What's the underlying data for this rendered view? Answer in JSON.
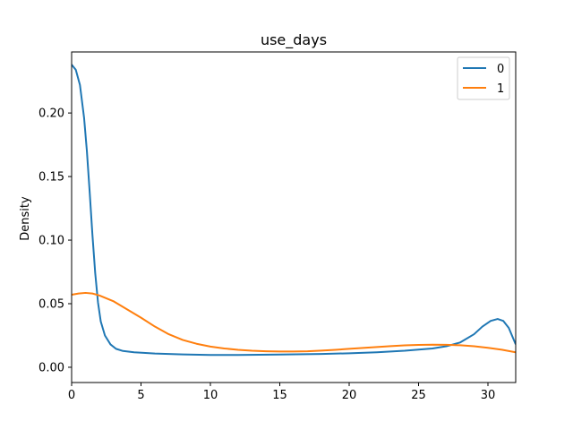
{
  "chart_data": {
    "type": "line",
    "title": "use_days",
    "xlabel": "",
    "ylabel": "Density",
    "xlim": [
      0,
      32
    ],
    "ylim": [
      -0.012,
      0.248
    ],
    "grid": false,
    "legend_position": "top-right",
    "x_ticks": [
      0,
      5,
      10,
      15,
      20,
      25,
      30
    ],
    "x_tick_labels": [
      "0",
      "5",
      "10",
      "15",
      "20",
      "25",
      "30"
    ],
    "y_ticks": [
      0.0,
      0.05,
      0.1,
      0.15,
      0.2
    ],
    "y_tick_labels": [
      "0.00",
      "0.05",
      "0.10",
      "0.15",
      "0.20"
    ],
    "series": [
      {
        "name": "0",
        "color": "#1f77b4",
        "points": [
          [
            0,
            0.238
          ],
          [
            0.3,
            0.234
          ],
          [
            0.6,
            0.222
          ],
          [
            0.9,
            0.196
          ],
          [
            1.1,
            0.17
          ],
          [
            1.3,
            0.138
          ],
          [
            1.5,
            0.104
          ],
          [
            1.7,
            0.074
          ],
          [
            1.9,
            0.051
          ],
          [
            2.1,
            0.036
          ],
          [
            2.4,
            0.025
          ],
          [
            2.8,
            0.018
          ],
          [
            3.2,
            0.0145
          ],
          [
            3.7,
            0.0128
          ],
          [
            4.5,
            0.0118
          ],
          [
            6,
            0.0108
          ],
          [
            8,
            0.0101
          ],
          [
            10,
            0.0097
          ],
          [
            12,
            0.0097
          ],
          [
            15,
            0.01
          ],
          [
            18,
            0.0105
          ],
          [
            20,
            0.011
          ],
          [
            22,
            0.0118
          ],
          [
            24,
            0.013
          ],
          [
            26,
            0.0148
          ],
          [
            27,
            0.0165
          ],
          [
            28,
            0.0195
          ],
          [
            29,
            0.026
          ],
          [
            29.6,
            0.032
          ],
          [
            30.2,
            0.0365
          ],
          [
            30.7,
            0.038
          ],
          [
            31.1,
            0.0365
          ],
          [
            31.5,
            0.031
          ],
          [
            32,
            0.018
          ]
        ]
      },
      {
        "name": "1",
        "color": "#ff7f0e",
        "points": [
          [
            0,
            0.057
          ],
          [
            0.5,
            0.058
          ],
          [
            1,
            0.0585
          ],
          [
            1.5,
            0.058
          ],
          [
            2,
            0.0565
          ],
          [
            3,
            0.052
          ],
          [
            4,
            0.0455
          ],
          [
            5,
            0.039
          ],
          [
            6,
            0.032
          ],
          [
            7,
            0.026
          ],
          [
            8,
            0.0215
          ],
          [
            9,
            0.0185
          ],
          [
            10,
            0.0163
          ],
          [
            11,
            0.0148
          ],
          [
            12,
            0.0137
          ],
          [
            13,
            0.013
          ],
          [
            14,
            0.0126
          ],
          [
            15,
            0.0124
          ],
          [
            16,
            0.0124
          ],
          [
            17,
            0.0126
          ],
          [
            18,
            0.0131
          ],
          [
            19,
            0.0137
          ],
          [
            20,
            0.0145
          ],
          [
            21,
            0.0152
          ],
          [
            22,
            0.0159
          ],
          [
            23,
            0.0166
          ],
          [
            24,
            0.0172
          ],
          [
            25,
            0.0176
          ],
          [
            26,
            0.0178
          ],
          [
            27,
            0.0177
          ],
          [
            28,
            0.0173
          ],
          [
            29,
            0.0165
          ],
          [
            30,
            0.0153
          ],
          [
            31,
            0.0138
          ],
          [
            32,
            0.0118
          ]
        ]
      }
    ]
  }
}
